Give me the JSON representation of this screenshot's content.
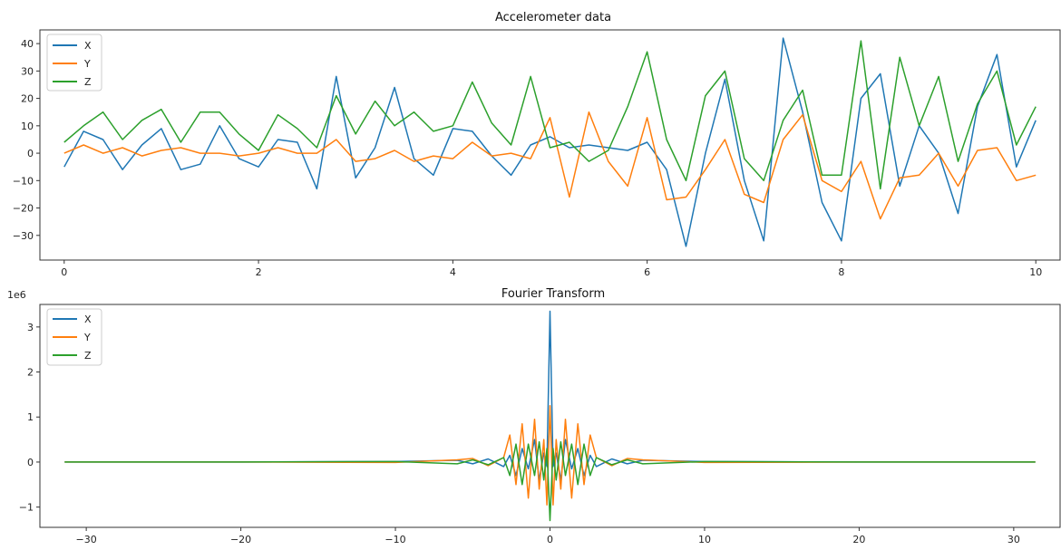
{
  "chart_data": [
    {
      "type": "line",
      "title": "Accelerometer data",
      "xlabel": "",
      "ylabel": "",
      "xlim": [
        -0.25,
        10.25
      ],
      "ylim": [
        -39,
        45
      ],
      "xticks": [
        0,
        2,
        4,
        6,
        8,
        10
      ],
      "yticks": [
        -30,
        -20,
        -10,
        0,
        10,
        20,
        30,
        40
      ],
      "legend_position": "top-left",
      "grid": false,
      "x": [
        0,
        0.2,
        0.4,
        0.6,
        0.8,
        1.0,
        1.2,
        1.4,
        1.6,
        1.8,
        2.0,
        2.2,
        2.4,
        2.6,
        2.8,
        3.0,
        3.2,
        3.4,
        3.6,
        3.8,
        4.0,
        4.2,
        4.4,
        4.6,
        4.8,
        5.0,
        5.2,
        5.4,
        5.6,
        5.8,
        6.0,
        6.2,
        6.4,
        6.6,
        6.8,
        7.0,
        7.2,
        7.4,
        7.6,
        7.8,
        8.0,
        8.2,
        8.4,
        8.6,
        8.8,
        9.0,
        9.2,
        9.4,
        9.6,
        9.8,
        10.0
      ],
      "series": [
        {
          "name": "X",
          "color": "#1f77b4",
          "values": [
            -5,
            8,
            5,
            -6,
            3,
            9,
            -6,
            -4,
            10,
            -2,
            -5,
            5,
            4,
            -13,
            28,
            -9,
            2,
            24,
            -2,
            -8,
            9,
            8,
            -1,
            -8,
            3,
            6,
            2,
            3,
            2,
            1,
            4,
            -6,
            -34,
            0,
            27,
            -10,
            -32,
            42,
            15,
            -18,
            -32,
            20,
            29,
            -12,
            10,
            0,
            -22,
            17,
            36,
            -5,
            12
          ]
        },
        {
          "name": "Y",
          "color": "#ff7f0e",
          "values": [
            0,
            3,
            0,
            2,
            -1,
            1,
            2,
            0,
            0,
            -1,
            0,
            2,
            0,
            0,
            5,
            -3,
            -2,
            1,
            -3,
            -1,
            -2,
            4,
            -1,
            0,
            -2,
            13,
            -16,
            15,
            -3,
            -12,
            13,
            -17,
            -16,
            -6,
            5,
            -15,
            -18,
            5,
            14,
            -10,
            -14,
            -3,
            -24,
            -9,
            -8,
            0,
            -12,
            1,
            2,
            -10,
            -8
          ]
        },
        {
          "name": "Z",
          "color": "#2ca02c",
          "values": [
            4,
            10,
            15,
            5,
            12,
            16,
            4,
            15,
            15,
            7,
            1,
            14,
            9,
            2,
            21,
            7,
            19,
            10,
            15,
            8,
            10,
            26,
            11,
            3,
            28,
            2,
            4,
            -3,
            1,
            17,
            37,
            5,
            -10,
            21,
            30,
            -2,
            -10,
            12,
            23,
            -8,
            -8,
            41,
            -13,
            35,
            10,
            28,
            -3,
            18,
            30,
            3,
            17
          ]
        }
      ]
    },
    {
      "type": "line",
      "title": "Fourier Transform",
      "xlabel": "",
      "ylabel": "",
      "y_scale_label": "1e6",
      "xlim": [
        -33,
        33
      ],
      "ylim": [
        -1.45,
        3.5
      ],
      "xticks": [
        -30,
        -20,
        -10,
        0,
        10,
        20,
        30
      ],
      "yticks": [
        -1,
        0,
        1,
        2,
        3
      ],
      "legend_position": "top-left",
      "grid": false,
      "x": [
        -31.4,
        -20,
        -10,
        -6,
        -5,
        -4,
        -3,
        -2.6,
        -2.2,
        -1.8,
        -1.4,
        -1.0,
        -0.7,
        -0.4,
        -0.2,
        0,
        0.2,
        0.4,
        0.7,
        1.0,
        1.4,
        1.8,
        2.2,
        2.6,
        3,
        4,
        5,
        6,
        10,
        20,
        31.4
      ],
      "series": [
        {
          "name": "X",
          "color": "#1f77b4",
          "values": [
            0,
            0,
            0.01,
            0.04,
            -0.04,
            0.07,
            -0.1,
            0.15,
            -0.3,
            0.3,
            -0.15,
            0.5,
            -0.4,
            0.2,
            -0.1,
            3.35,
            -0.1,
            0.2,
            -0.4,
            0.5,
            -0.15,
            0.3,
            -0.3,
            0.15,
            -0.1,
            0.07,
            -0.04,
            0.04,
            0.01,
            0,
            0
          ]
        },
        {
          "name": "Y",
          "color": "#ff7f0e",
          "values": [
            0,
            0,
            -0.01,
            0.05,
            0.08,
            -0.08,
            0.1,
            0.6,
            -0.5,
            0.85,
            -0.8,
            0.95,
            -0.6,
            0.5,
            -0.95,
            1.25,
            -0.95,
            0.5,
            -0.6,
            0.95,
            -0.8,
            0.85,
            -0.5,
            0.6,
            0.1,
            -0.08,
            0.08,
            0.05,
            -0.01,
            0,
            0
          ]
        },
        {
          "name": "Z",
          "color": "#2ca02c",
          "values": [
            0,
            0,
            0.01,
            -0.04,
            0.05,
            -0.06,
            0.1,
            -0.3,
            0.4,
            -0.5,
            0.4,
            -0.3,
            0.45,
            -0.4,
            0.3,
            -1.3,
            0.3,
            -0.4,
            0.45,
            -0.3,
            0.4,
            -0.5,
            0.4,
            -0.3,
            0.1,
            -0.06,
            0.05,
            -0.04,
            0.01,
            0,
            0
          ]
        }
      ]
    }
  ]
}
